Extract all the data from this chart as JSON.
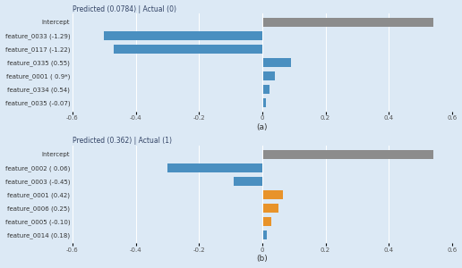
{
  "top": {
    "title": "Predicted (0.0784) | Actual (0)",
    "labels": [
      "Intercept",
      "feature_0033 (-1.29)",
      "feature_0117 (-1.22)",
      "feature_0335 (0.55)",
      "feature_0001 ( 0.9*)",
      "feature_0334 (0.54)",
      "feature_0035 (-0.07)"
    ],
    "values": [
      0.54,
      -0.5,
      -0.47,
      0.09,
      0.04,
      0.022,
      0.012
    ],
    "colors": [
      "#8c8c8c",
      "#4a8fc0",
      "#4a8fc0",
      "#4a8fc0",
      "#4a8fc0",
      "#4a8fc0",
      "#4a8fc0"
    ],
    "xlim": [
      -0.6,
      0.6
    ],
    "xticks": [
      -0.6,
      -0.4,
      -0.2,
      0.0,
      0.2,
      0.4,
      0.6
    ],
    "xtick_labels": [
      "-0.6",
      "-0.4",
      "-0.2",
      "0",
      "0.2",
      "0.4",
      "0.6"
    ],
    "xlabel": "(a)",
    "bg_color": "#dce9f5"
  },
  "bottom": {
    "title": "Predicted (0.362) | Actual (1)",
    "labels": [
      "Intercept",
      "feature_0002 ( 0.06)",
      "feature_0003 (-0.45)",
      "feature_0001 (0.42)",
      "feature_0006 (0.25)",
      "feature_0005 (-0.10)",
      "feature_0014 (0.18)"
    ],
    "values": [
      0.54,
      -0.3,
      -0.09,
      0.065,
      0.05,
      0.03,
      0.015
    ],
    "colors": [
      "#8c8c8c",
      "#4a8fc0",
      "#4a8fc0",
      "#e8932a",
      "#e8932a",
      "#e8932a",
      "#4a8fc0"
    ],
    "xlim": [
      -0.6,
      0.6
    ],
    "xticks": [
      -0.6,
      -0.4,
      -0.2,
      0.0,
      0.2,
      0.4,
      0.6
    ],
    "xtick_labels": [
      "-0.6",
      "-0.4",
      "-0.2",
      "0",
      "0.2",
      "0.4",
      "0.6"
    ],
    "xlabel": "(b)",
    "bg_color": "#dce9f5"
  },
  "fig_bg": "#dce9f5",
  "title_fontsize": 5.5,
  "label_fontsize": 5.0,
  "tick_fontsize": 5.0,
  "xlabel_fontsize": 6.5
}
